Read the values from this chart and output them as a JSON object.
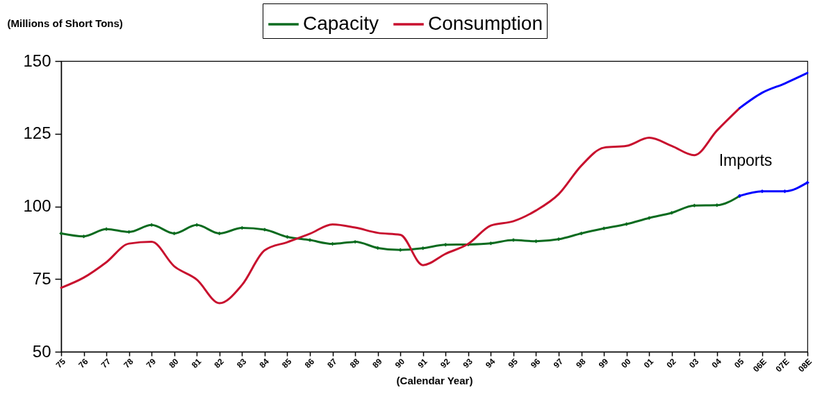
{
  "chart_data": {
    "type": "line",
    "ylabel": "(Millions of Short Tons)",
    "xlabel": "(Calendar Year)",
    "categories": [
      "75",
      "76",
      "77",
      "78",
      "79",
      "80",
      "81",
      "82",
      "83",
      "84",
      "85",
      "86",
      "87",
      "88",
      "89",
      "90",
      "91",
      "92",
      "93",
      "94",
      "95",
      "96",
      "97",
      "98",
      "99",
      "00",
      "01",
      "02",
      "03",
      "04",
      "05",
      "06E",
      "07E",
      "08E"
    ],
    "series": [
      {
        "name": "Capacity",
        "color": "#0b6b1f",
        "marker": "diamond",
        "values": [
          90.7,
          89.7,
          92.2,
          91.2,
          93.6,
          90.7,
          93.6,
          90.7,
          92.6,
          92.0,
          89.5,
          88.4,
          87.1,
          87.8,
          85.7,
          85.0,
          85.6,
          86.8,
          86.9,
          87.3,
          88.4,
          88.0,
          88.7,
          90.7,
          92.4,
          93.9,
          96.0,
          97.8,
          100.3,
          100.4,
          103.6,
          null,
          null,
          null
        ]
      },
      {
        "name": "Consumption",
        "color": "#c8102e",
        "marker": "none",
        "values": [
          72.0,
          75.5,
          80.8,
          87.2,
          87.8,
          79.4,
          74.8,
          66.7,
          73.0,
          84.9,
          87.7,
          90.6,
          93.8,
          92.7,
          90.9,
          90.2,
          79.8,
          83.7,
          87.1,
          93.4,
          94.9,
          98.6,
          104.2,
          114.0,
          120.2,
          120.8,
          123.6,
          120.8,
          117.6,
          126.1,
          133.8,
          null,
          null,
          null
        ]
      },
      {
        "color": "#0000ff",
        "marker": "diamond",
        "values": [
          null,
          null,
          null,
          null,
          null,
          null,
          null,
          null,
          null,
          null,
          null,
          null,
          null,
          null,
          null,
          null,
          null,
          null,
          null,
          null,
          null,
          null,
          null,
          null,
          null,
          null,
          null,
          null,
          null,
          null,
          103.6,
          105.2,
          105.2,
          108.2
        ]
      },
      {
        "color": "#0000ff",
        "marker": "none",
        "values": [
          null,
          null,
          null,
          null,
          null,
          null,
          null,
          null,
          null,
          null,
          null,
          null,
          null,
          null,
          null,
          null,
          null,
          null,
          null,
          null,
          null,
          null,
          null,
          null,
          null,
          null,
          null,
          null,
          null,
          null,
          133.8,
          139.1,
          142.3,
          145.9
        ]
      }
    ],
    "ylim": [
      50,
      150
    ],
    "yticks": [
      50,
      75,
      100,
      125,
      150
    ],
    "grid": false,
    "legend": "top",
    "annotations": [
      "Imports"
    ]
  }
}
